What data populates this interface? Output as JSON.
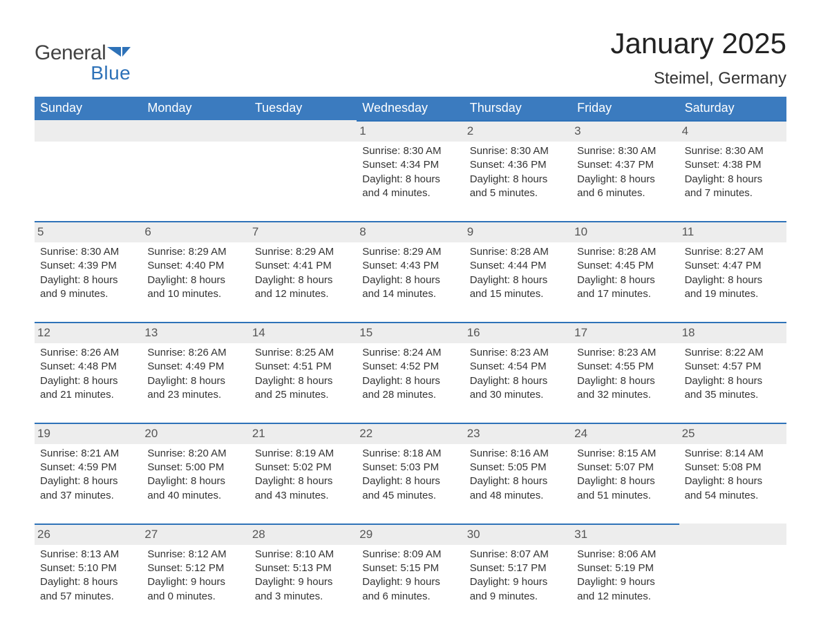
{
  "brand": {
    "general": "General",
    "blue": "Blue",
    "logo_color": "#2e72b8"
  },
  "title": "January 2025",
  "location": "Steimel, Germany",
  "colors": {
    "header_bg": "#3b7bbf",
    "header_text": "#ffffff",
    "daynum_bg": "#ededed",
    "daynum_border": "#2e72b8",
    "text": "#333333",
    "page_bg": "#ffffff"
  },
  "fonts": {
    "title_size_pt": 32,
    "location_size_pt": 18,
    "weekday_size_pt": 14,
    "body_size_pt": 11
  },
  "weekdays": [
    "Sunday",
    "Monday",
    "Tuesday",
    "Wednesday",
    "Thursday",
    "Friday",
    "Saturday"
  ],
  "weeks": [
    [
      {
        "day": null
      },
      {
        "day": null
      },
      {
        "day": null
      },
      {
        "day": 1,
        "sunrise": "Sunrise: 8:30 AM",
        "sunset": "Sunset: 4:34 PM",
        "daylight": "Daylight: 8 hours and 4 minutes."
      },
      {
        "day": 2,
        "sunrise": "Sunrise: 8:30 AM",
        "sunset": "Sunset: 4:36 PM",
        "daylight": "Daylight: 8 hours and 5 minutes."
      },
      {
        "day": 3,
        "sunrise": "Sunrise: 8:30 AM",
        "sunset": "Sunset: 4:37 PM",
        "daylight": "Daylight: 8 hours and 6 minutes."
      },
      {
        "day": 4,
        "sunrise": "Sunrise: 8:30 AM",
        "sunset": "Sunset: 4:38 PM",
        "daylight": "Daylight: 8 hours and 7 minutes."
      }
    ],
    [
      {
        "day": 5,
        "sunrise": "Sunrise: 8:30 AM",
        "sunset": "Sunset: 4:39 PM",
        "daylight": "Daylight: 8 hours and 9 minutes."
      },
      {
        "day": 6,
        "sunrise": "Sunrise: 8:29 AM",
        "sunset": "Sunset: 4:40 PM",
        "daylight": "Daylight: 8 hours and 10 minutes."
      },
      {
        "day": 7,
        "sunrise": "Sunrise: 8:29 AM",
        "sunset": "Sunset: 4:41 PM",
        "daylight": "Daylight: 8 hours and 12 minutes."
      },
      {
        "day": 8,
        "sunrise": "Sunrise: 8:29 AM",
        "sunset": "Sunset: 4:43 PM",
        "daylight": "Daylight: 8 hours and 14 minutes."
      },
      {
        "day": 9,
        "sunrise": "Sunrise: 8:28 AM",
        "sunset": "Sunset: 4:44 PM",
        "daylight": "Daylight: 8 hours and 15 minutes."
      },
      {
        "day": 10,
        "sunrise": "Sunrise: 8:28 AM",
        "sunset": "Sunset: 4:45 PM",
        "daylight": "Daylight: 8 hours and 17 minutes."
      },
      {
        "day": 11,
        "sunrise": "Sunrise: 8:27 AM",
        "sunset": "Sunset: 4:47 PM",
        "daylight": "Daylight: 8 hours and 19 minutes."
      }
    ],
    [
      {
        "day": 12,
        "sunrise": "Sunrise: 8:26 AM",
        "sunset": "Sunset: 4:48 PM",
        "daylight": "Daylight: 8 hours and 21 minutes."
      },
      {
        "day": 13,
        "sunrise": "Sunrise: 8:26 AM",
        "sunset": "Sunset: 4:49 PM",
        "daylight": "Daylight: 8 hours and 23 minutes."
      },
      {
        "day": 14,
        "sunrise": "Sunrise: 8:25 AM",
        "sunset": "Sunset: 4:51 PM",
        "daylight": "Daylight: 8 hours and 25 minutes."
      },
      {
        "day": 15,
        "sunrise": "Sunrise: 8:24 AM",
        "sunset": "Sunset: 4:52 PM",
        "daylight": "Daylight: 8 hours and 28 minutes."
      },
      {
        "day": 16,
        "sunrise": "Sunrise: 8:23 AM",
        "sunset": "Sunset: 4:54 PM",
        "daylight": "Daylight: 8 hours and 30 minutes."
      },
      {
        "day": 17,
        "sunrise": "Sunrise: 8:23 AM",
        "sunset": "Sunset: 4:55 PM",
        "daylight": "Daylight: 8 hours and 32 minutes."
      },
      {
        "day": 18,
        "sunrise": "Sunrise: 8:22 AM",
        "sunset": "Sunset: 4:57 PM",
        "daylight": "Daylight: 8 hours and 35 minutes."
      }
    ],
    [
      {
        "day": 19,
        "sunrise": "Sunrise: 8:21 AM",
        "sunset": "Sunset: 4:59 PM",
        "daylight": "Daylight: 8 hours and 37 minutes."
      },
      {
        "day": 20,
        "sunrise": "Sunrise: 8:20 AM",
        "sunset": "Sunset: 5:00 PM",
        "daylight": "Daylight: 8 hours and 40 minutes."
      },
      {
        "day": 21,
        "sunrise": "Sunrise: 8:19 AM",
        "sunset": "Sunset: 5:02 PM",
        "daylight": "Daylight: 8 hours and 43 minutes."
      },
      {
        "day": 22,
        "sunrise": "Sunrise: 8:18 AM",
        "sunset": "Sunset: 5:03 PM",
        "daylight": "Daylight: 8 hours and 45 minutes."
      },
      {
        "day": 23,
        "sunrise": "Sunrise: 8:16 AM",
        "sunset": "Sunset: 5:05 PM",
        "daylight": "Daylight: 8 hours and 48 minutes."
      },
      {
        "day": 24,
        "sunrise": "Sunrise: 8:15 AM",
        "sunset": "Sunset: 5:07 PM",
        "daylight": "Daylight: 8 hours and 51 minutes."
      },
      {
        "day": 25,
        "sunrise": "Sunrise: 8:14 AM",
        "sunset": "Sunset: 5:08 PM",
        "daylight": "Daylight: 8 hours and 54 minutes."
      }
    ],
    [
      {
        "day": 26,
        "sunrise": "Sunrise: 8:13 AM",
        "sunset": "Sunset: 5:10 PM",
        "daylight": "Daylight: 8 hours and 57 minutes."
      },
      {
        "day": 27,
        "sunrise": "Sunrise: 8:12 AM",
        "sunset": "Sunset: 5:12 PM",
        "daylight": "Daylight: 9 hours and 0 minutes."
      },
      {
        "day": 28,
        "sunrise": "Sunrise: 8:10 AM",
        "sunset": "Sunset: 5:13 PM",
        "daylight": "Daylight: 9 hours and 3 minutes."
      },
      {
        "day": 29,
        "sunrise": "Sunrise: 8:09 AM",
        "sunset": "Sunset: 5:15 PM",
        "daylight": "Daylight: 9 hours and 6 minutes."
      },
      {
        "day": 30,
        "sunrise": "Sunrise: 8:07 AM",
        "sunset": "Sunset: 5:17 PM",
        "daylight": "Daylight: 9 hours and 9 minutes."
      },
      {
        "day": 31,
        "sunrise": "Sunrise: 8:06 AM",
        "sunset": "Sunset: 5:19 PM",
        "daylight": "Daylight: 9 hours and 12 minutes."
      },
      {
        "day": null
      }
    ]
  ]
}
